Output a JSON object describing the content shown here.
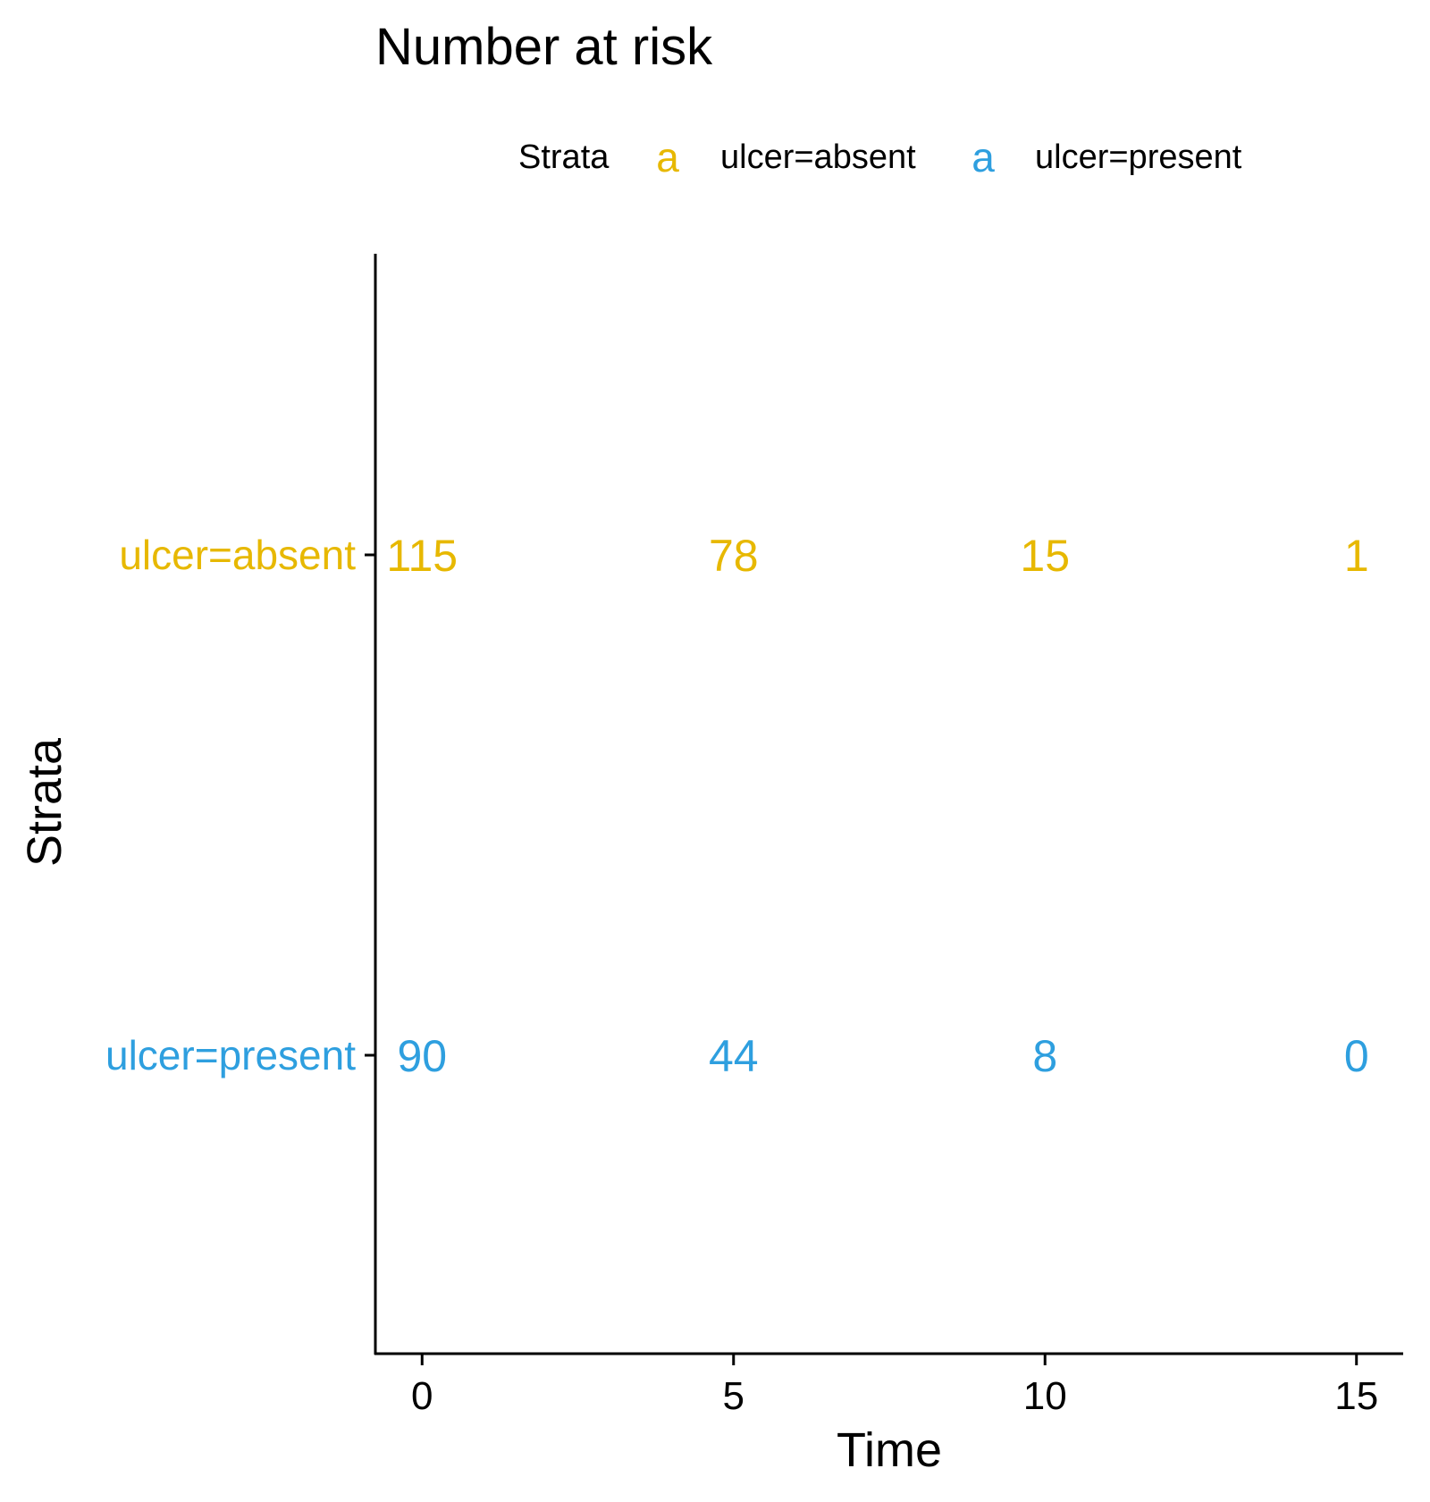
{
  "chart_data": {
    "type": "table",
    "title": "Number at risk",
    "xlabel": "Time",
    "ylabel": "Strata",
    "legend": {
      "title": "Strata",
      "position": "top",
      "key_glyph": "a",
      "entries": [
        {
          "label": "ulcer=absent",
          "color": "#E7B800"
        },
        {
          "label": "ulcer=present",
          "color": "#2E9FDF"
        }
      ]
    },
    "x_ticks": [
      0,
      5,
      10,
      15
    ],
    "xlim": [
      -0.75,
      15.75
    ],
    "grid": false,
    "series": [
      {
        "name": "ulcer=absent",
        "color": "#E7B800",
        "x": [
          0,
          5,
          10,
          15
        ],
        "values": [
          115,
          78,
          15,
          1
        ]
      },
      {
        "name": "ulcer=present",
        "color": "#2E9FDF",
        "x": [
          0,
          5,
          10,
          15
        ],
        "values": [
          90,
          44,
          8,
          0
        ]
      }
    ]
  }
}
